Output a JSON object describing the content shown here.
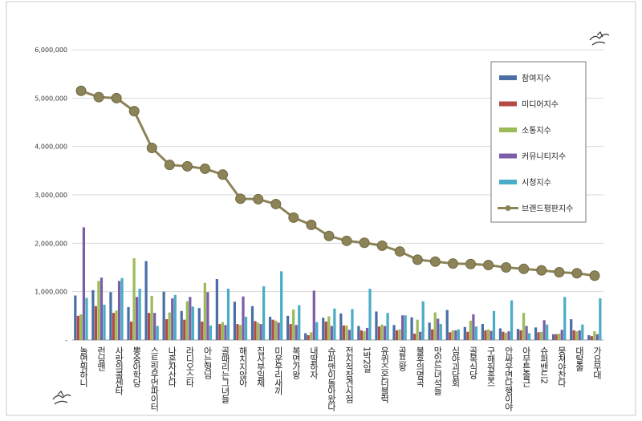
{
  "chart_data": {
    "type": "bar+line",
    "title": "",
    "ylim": [
      0,
      6000000
    ],
    "yticks": [
      "6,000,000",
      "5,000,000",
      "4,000,000",
      "3,000,000",
      "2,000,000",
      "1,000,000",
      "-"
    ],
    "categories": [
      "놀면뭐하니",
      "런닝맨",
      "사랑의콜센타",
      "뽕숭아학당",
      "스트릿우먼파이터",
      "나혼자산다",
      "라디오스타",
      "아는형님",
      "골때리는그녀들",
      "해치지않아",
      "집사부일체",
      "미운우리새끼",
      "복면가왕",
      "내딸하자",
      "슈퍼맨이돌아왔다",
      "전지적참견시점",
      "1박2일",
      "유퀴즈온더블럭",
      "골프왕",
      "불후의명곡",
      "맛있는녀석들",
      "심야괴담회",
      "골목식당",
      "구해줘홈즈",
      "안싸우면다행이야",
      "아무튼출근",
      "슈퍼밴드2",
      "뭉쳐야찬다",
      "대탈출",
      "가요무대"
    ],
    "series": [
      {
        "name": "참여지수",
        "color": "#4a6fa5",
        "values": [
          920000,
          1030000,
          990000,
          680000,
          1630000,
          1000000,
          600000,
          660000,
          1260000,
          790000,
          700000,
          480000,
          500000,
          140000,
          460000,
          550000,
          290000,
          590000,
          310000,
          470000,
          360000,
          620000,
          270000,
          330000,
          240000,
          230000,
          260000,
          120000,
          430000,
          100000
        ]
      },
      {
        "name": "미디어지수",
        "color": "#b34a45",
        "values": [
          500000,
          700000,
          560000,
          380000,
          560000,
          430000,
          420000,
          380000,
          330000,
          330000,
          390000,
          420000,
          330000,
          100000,
          380000,
          300000,
          200000,
          280000,
          200000,
          130000,
          220000,
          160000,
          170000,
          200000,
          170000,
          200000,
          160000,
          120000,
          200000,
          80000
        ]
      },
      {
        "name": "소통지수",
        "color": "#9bbb59",
        "values": [
          530000,
          1220000,
          610000,
          1690000,
          910000,
          570000,
          800000,
          1180000,
          370000,
          310000,
          360000,
          400000,
          630000,
          160000,
          490000,
          300000,
          180000,
          320000,
          220000,
          420000,
          570000,
          200000,
          400000,
          220000,
          150000,
          560000,
          170000,
          130000,
          180000,
          180000
        ]
      },
      {
        "name": "커뮤니티지수",
        "color": "#7b5ea7",
        "values": [
          2330000,
          1290000,
          1220000,
          890000,
          560000,
          860000,
          890000,
          990000,
          310000,
          900000,
          330000,
          360000,
          310000,
          1020000,
          290000,
          210000,
          250000,
          290000,
          510000,
          170000,
          440000,
          200000,
          530000,
          190000,
          180000,
          290000,
          410000,
          210000,
          200000,
          120000
        ]
      },
      {
        "name": "시청지수",
        "color": "#4bacc6",
        "values": [
          870000,
          730000,
          1280000,
          1060000,
          290000,
          930000,
          690000,
          300000,
          1060000,
          480000,
          1110000,
          1420000,
          720000,
          370000,
          650000,
          640000,
          1060000,
          560000,
          510000,
          800000,
          330000,
          220000,
          280000,
          600000,
          820000,
          140000,
          320000,
          890000,
          320000,
          860000
        ]
      },
      {
        "name": "브랜드평판지수",
        "color": "#8c8458",
        "type": "line",
        "values": [
          5150000,
          5020000,
          5000000,
          4730000,
          3970000,
          3620000,
          3590000,
          3540000,
          3420000,
          2920000,
          2910000,
          2810000,
          2530000,
          2380000,
          2150000,
          2050000,
          2010000,
          1950000,
          1830000,
          1660000,
          1620000,
          1580000,
          1570000,
          1550000,
          1500000,
          1470000,
          1440000,
          1400000,
          1380000,
          1330000
        ]
      }
    ],
    "legend": [
      "참여지수",
      "미디어지수",
      "소통지수",
      "커뮤니티지수",
      "시청지수",
      "브랜드평판지수"
    ],
    "legend_position": "top-right",
    "grid": true
  }
}
